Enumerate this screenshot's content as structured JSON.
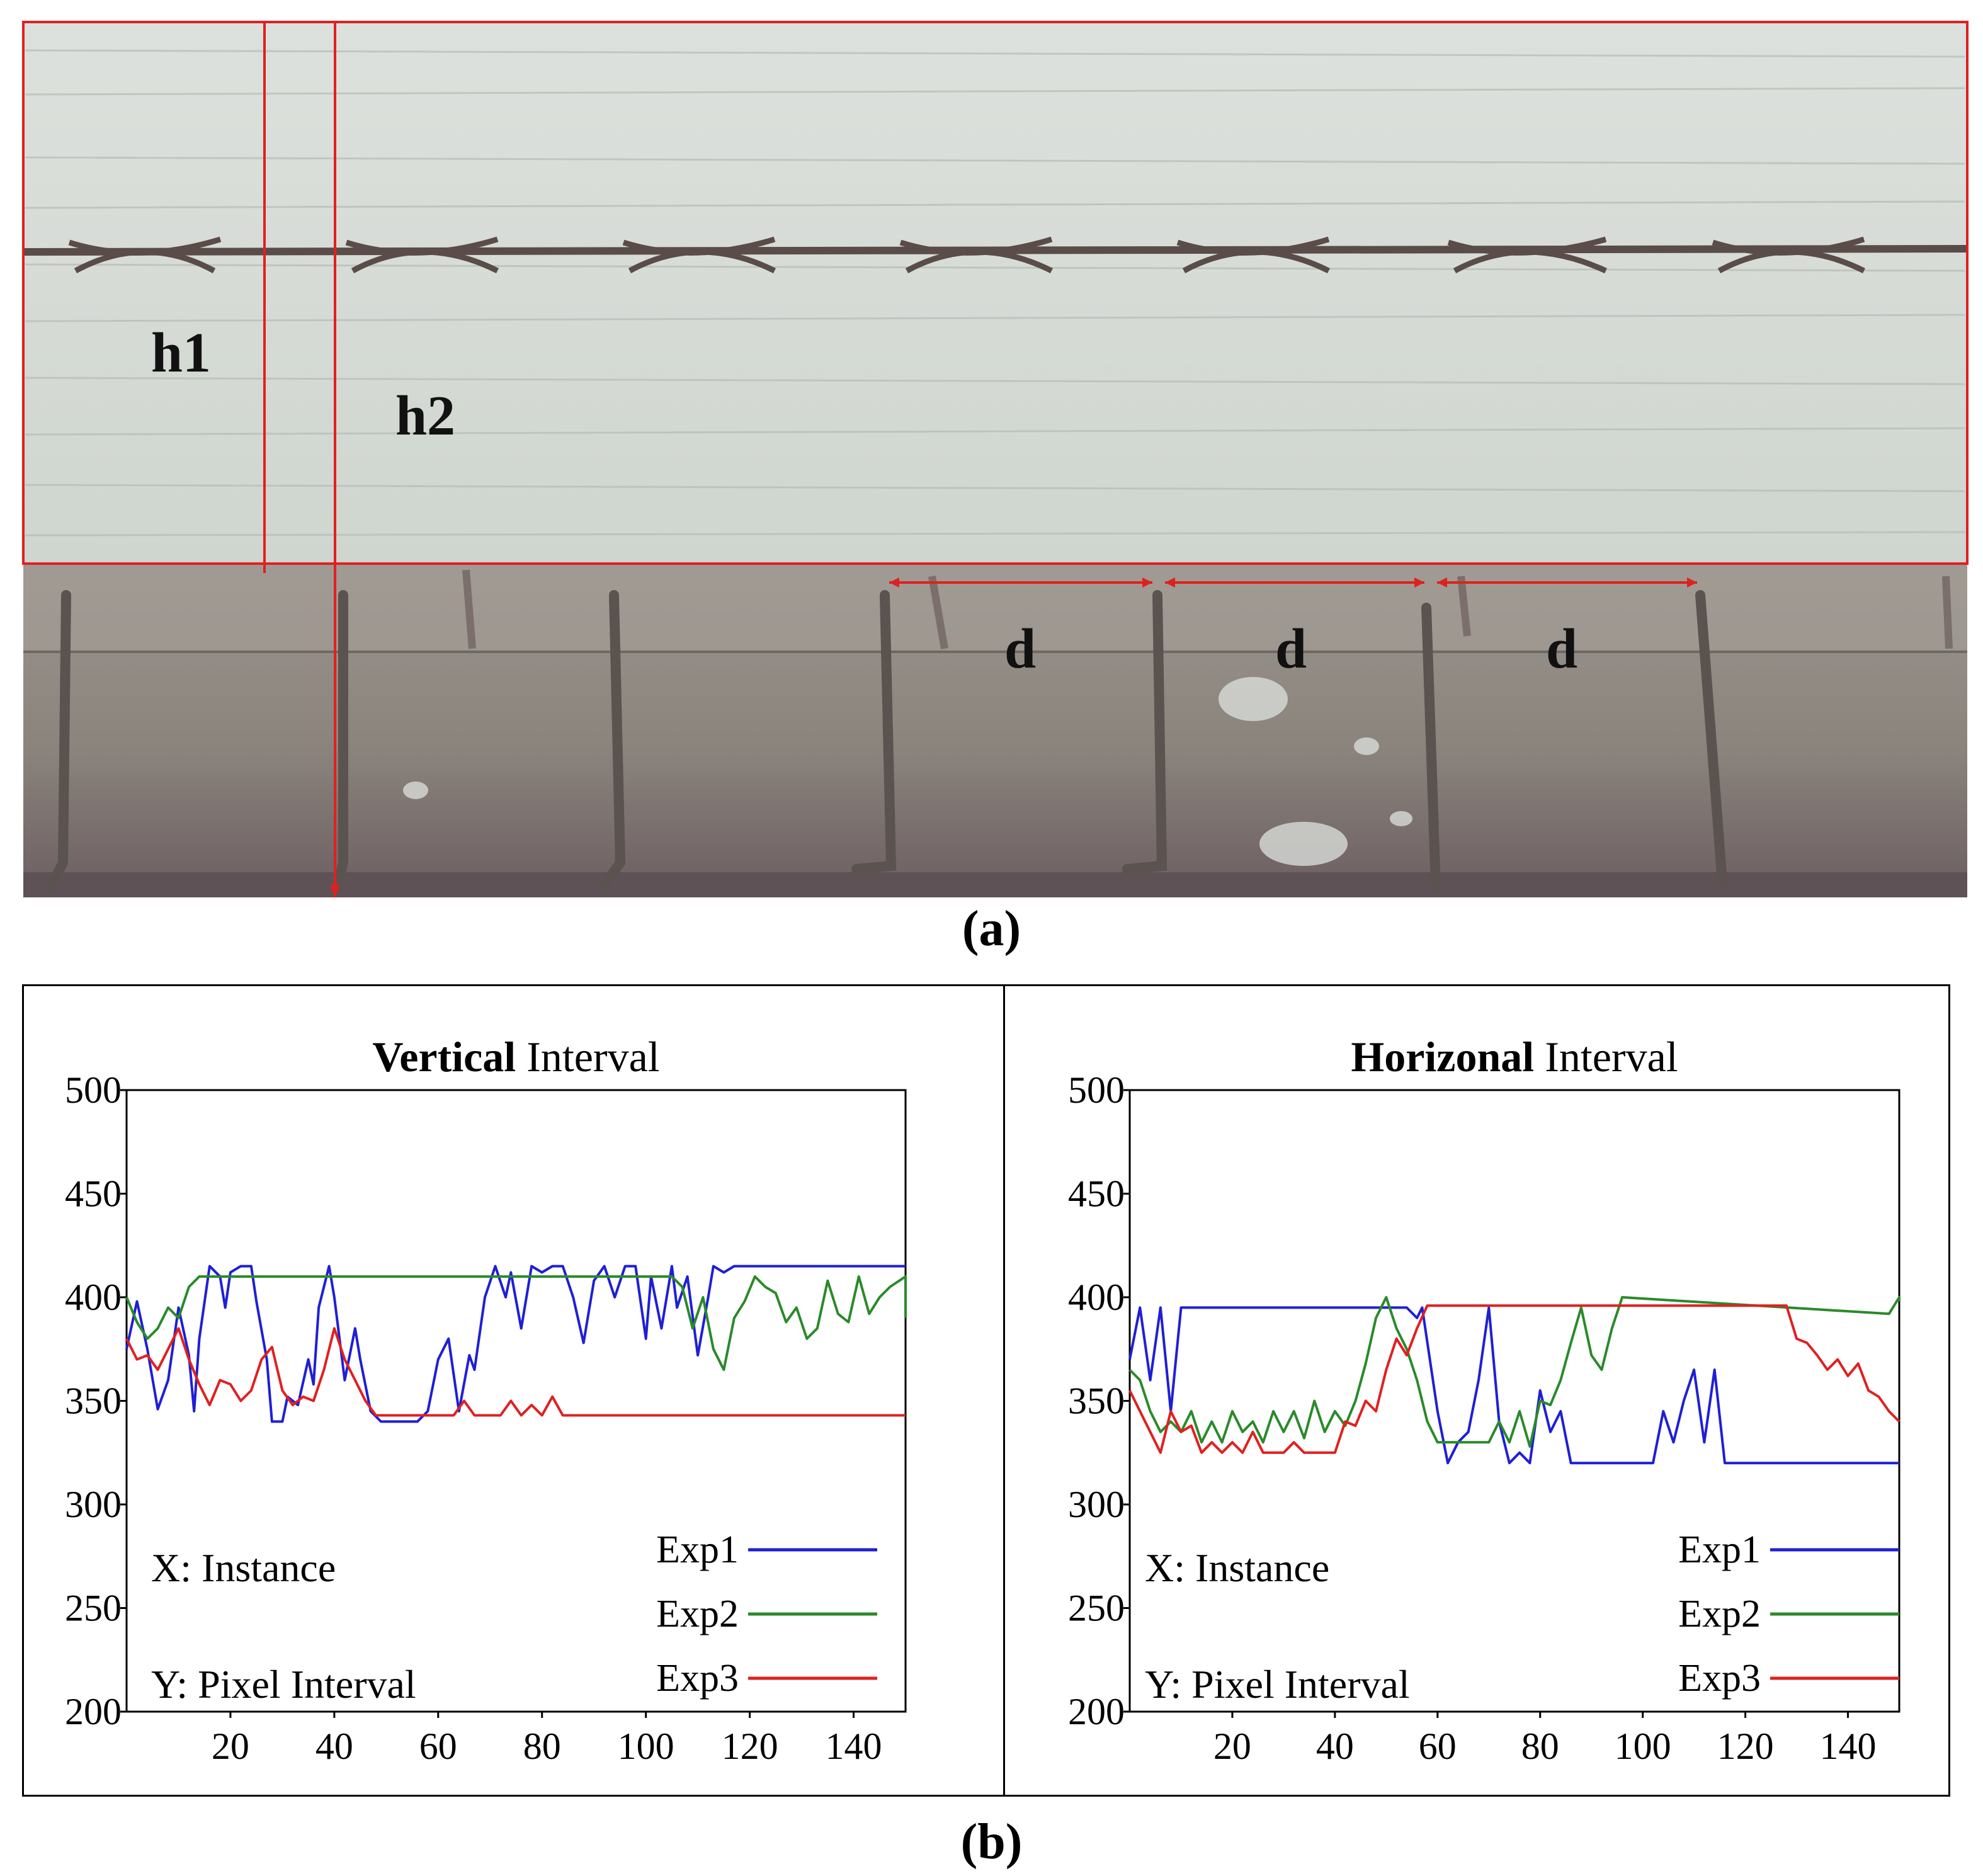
{
  "photo": {
    "labels": {
      "h1": "h1",
      "h2": "h2",
      "d": [
        "d",
        "d",
        "d"
      ]
    },
    "caption": "(a)",
    "colors": {
      "slab": "#d6dcd6",
      "beam": "#8a857f",
      "rebar": "#5a4c48",
      "annotation": "#e02020"
    }
  },
  "figure_caption": "(b)",
  "chart_data": [
    {
      "type": "line",
      "title_bold": "Vertical",
      "title_rest": " Interval",
      "xlim": [
        0,
        150
      ],
      "ylim": [
        200,
        500
      ],
      "xticks": [
        20,
        40,
        60,
        80,
        100,
        120,
        140
      ],
      "yticks": [
        200,
        250,
        300,
        350,
        400,
        450,
        500
      ],
      "annotations": {
        "x": "X:  Instance",
        "y": "Y:  Pixel Interval"
      },
      "legend_position": "bottom-right",
      "series": [
        {
          "name": "Exp1",
          "color": "#1f1fd6",
          "points": [
            [
              0,
              375
            ],
            [
              2,
              398
            ],
            [
              4,
              375
            ],
            [
              6,
              346
            ],
            [
              8,
              360
            ],
            [
              10,
              395
            ],
            [
              12,
              372
            ],
            [
              13,
              345
            ],
            [
              14,
              380
            ],
            [
              16,
              415
            ],
            [
              18,
              410
            ],
            [
              19,
              395
            ],
            [
              20,
              412
            ],
            [
              22,
              415
            ],
            [
              24,
              415
            ],
            [
              25,
              398
            ],
            [
              27,
              370
            ],
            [
              28,
              340
            ],
            [
              30,
              340
            ],
            [
              31,
              352
            ],
            [
              33,
              348
            ],
            [
              35,
              370
            ],
            [
              36,
              358
            ],
            [
              37,
              395
            ],
            [
              39,
              415
            ],
            [
              40,
              400
            ],
            [
              42,
              360
            ],
            [
              44,
              385
            ],
            [
              45,
              370
            ],
            [
              47,
              345
            ],
            [
              49,
              340
            ],
            [
              56,
              340
            ],
            [
              58,
              345
            ],
            [
              60,
              370
            ],
            [
              62,
              380
            ],
            [
              64,
              345
            ],
            [
              66,
              372
            ],
            [
              67,
              365
            ],
            [
              69,
              400
            ],
            [
              71,
              415
            ],
            [
              73,
              400
            ],
            [
              74,
              412
            ],
            [
              76,
              385
            ],
            [
              78,
              415
            ],
            [
              80,
              412
            ],
            [
              82,
              415
            ],
            [
              84,
              415
            ],
            [
              86,
              400
            ],
            [
              88,
              378
            ],
            [
              90,
              408
            ],
            [
              92,
              415
            ],
            [
              94,
              400
            ],
            [
              96,
              415
            ],
            [
              98,
              415
            ],
            [
              100,
              380
            ],
            [
              101,
              410
            ],
            [
              103,
              385
            ],
            [
              105,
              415
            ],
            [
              106,
              395
            ],
            [
              108,
              410
            ],
            [
              110,
              372
            ],
            [
              112,
              400
            ],
            [
              113,
              415
            ],
            [
              115,
              412
            ],
            [
              117,
              415
            ],
            [
              150,
              415
            ]
          ]
        },
        {
          "name": "Exp2",
          "color": "#2a8a2a",
          "points": [
            [
              0,
              400
            ],
            [
              2,
              388
            ],
            [
              4,
              380
            ],
            [
              6,
              385
            ],
            [
              8,
              395
            ],
            [
              10,
              390
            ],
            [
              12,
              405
            ],
            [
              14,
              410
            ],
            [
              150,
              410
            ],
            [
              105,
              410
            ],
            [
              107,
              405
            ],
            [
              109,
              385
            ],
            [
              111,
              400
            ],
            [
              113,
              375
            ],
            [
              115,
              365
            ],
            [
              117,
              390
            ],
            [
              119,
              398
            ],
            [
              121,
              410
            ],
            [
              123,
              405
            ],
            [
              125,
              402
            ],
            [
              127,
              388
            ],
            [
              129,
              395
            ],
            [
              131,
              380
            ],
            [
              133,
              385
            ],
            [
              135,
              408
            ],
            [
              137,
              392
            ],
            [
              139,
              388
            ],
            [
              141,
              410
            ],
            [
              143,
              392
            ],
            [
              145,
              400
            ],
            [
              147,
              405
            ],
            [
              150,
              390
            ]
          ]
        },
        {
          "name": "Exp3",
          "color": "#e02020",
          "points": [
            [
              0,
              380
            ],
            [
              2,
              370
            ],
            [
              4,
              372
            ],
            [
              6,
              365
            ],
            [
              8,
              375
            ],
            [
              10,
              385
            ],
            [
              12,
              370
            ],
            [
              14,
              358
            ],
            [
              16,
              348
            ],
            [
              18,
              360
            ],
            [
              20,
              358
            ],
            [
              22,
              350
            ],
            [
              24,
              355
            ],
            [
              26,
              370
            ],
            [
              28,
              376
            ],
            [
              30,
              355
            ],
            [
              32,
              348
            ],
            [
              34,
              352
            ],
            [
              36,
              350
            ],
            [
              38,
              365
            ],
            [
              40,
              385
            ],
            [
              42,
              370
            ],
            [
              44,
              360
            ],
            [
              46,
              350
            ],
            [
              48,
              343
            ],
            [
              63,
              343
            ],
            [
              65,
              350
            ],
            [
              67,
              343
            ],
            [
              72,
              343
            ],
            [
              74,
              350
            ],
            [
              76,
              343
            ],
            [
              78,
              348
            ],
            [
              80,
              343
            ],
            [
              82,
              352
            ],
            [
              84,
              343
            ],
            [
              150,
              343
            ]
          ]
        }
      ]
    },
    {
      "type": "line",
      "title_bold": "Horizonal",
      "title_rest": " Interval",
      "xlim": [
        0,
        150
      ],
      "ylim": [
        200,
        500
      ],
      "xticks": [
        20,
        40,
        60,
        80,
        100,
        120,
        140
      ],
      "yticks": [
        200,
        250,
        300,
        350,
        400,
        450,
        500
      ],
      "annotations": {
        "x": "X:  Instance",
        "y": "Y:  Pixel Interval"
      },
      "legend_position": "bottom-right",
      "series": [
        {
          "name": "Exp1",
          "color": "#1f1fd6",
          "points": [
            [
              0,
              370
            ],
            [
              2,
              395
            ],
            [
              4,
              360
            ],
            [
              6,
              395
            ],
            [
              8,
              345
            ],
            [
              10,
              395
            ],
            [
              12,
              395
            ],
            [
              54,
              395
            ],
            [
              56,
              390
            ],
            [
              57,
              395
            ],
            [
              60,
              345
            ],
            [
              62,
              320
            ],
            [
              64,
              330
            ],
            [
              66,
              335
            ],
            [
              68,
              360
            ],
            [
              70,
              395
            ],
            [
              72,
              340
            ],
            [
              74,
              320
            ],
            [
              76,
              325
            ],
            [
              78,
              320
            ],
            [
              80,
              355
            ],
            [
              82,
              335
            ],
            [
              84,
              345
            ],
            [
              86,
              320
            ],
            [
              102,
              320
            ],
            [
              104,
              345
            ],
            [
              106,
              330
            ],
            [
              108,
              350
            ],
            [
              110,
              365
            ],
            [
              112,
              330
            ],
            [
              114,
              365
            ],
            [
              116,
              320
            ],
            [
              150,
              320
            ]
          ]
        },
        {
          "name": "Exp2",
          "color": "#2a8a2a",
          "points": [
            [
              0,
              365
            ],
            [
              2,
              360
            ],
            [
              4,
              345
            ],
            [
              6,
              335
            ],
            [
              8,
              340
            ],
            [
              10,
              335
            ],
            [
              12,
              345
            ],
            [
              14,
              330
            ],
            [
              16,
              340
            ],
            [
              18,
              330
            ],
            [
              20,
              345
            ],
            [
              22,
              335
            ],
            [
              24,
              340
            ],
            [
              26,
              330
            ],
            [
              28,
              345
            ],
            [
              30,
              335
            ],
            [
              32,
              345
            ],
            [
              34,
              332
            ],
            [
              36,
              350
            ],
            [
              38,
              335
            ],
            [
              40,
              345
            ],
            [
              42,
              338
            ],
            [
              44,
              350
            ],
            [
              46,
              368
            ],
            [
              48,
              390
            ],
            [
              50,
              400
            ],
            [
              52,
              385
            ],
            [
              54,
              375
            ],
            [
              56,
              360
            ],
            [
              58,
              340
            ],
            [
              60,
              330
            ],
            [
              70,
              330
            ],
            [
              72,
              340
            ],
            [
              74,
              330
            ],
            [
              76,
              345
            ],
            [
              78,
              328
            ],
            [
              80,
              350
            ],
            [
              82,
              348
            ],
            [
              84,
              360
            ],
            [
              86,
              378
            ],
            [
              88,
              395
            ],
            [
              90,
              372
            ],
            [
              92,
              365
            ],
            [
              94,
              385
            ],
            [
              96,
              400
            ],
            [
              150,
              400
            ],
            [
              148,
              392
            ],
            [
              150,
              398
            ]
          ]
        },
        {
          "name": "Exp3",
          "color": "#e02020",
          "points": [
            [
              0,
              355
            ],
            [
              2,
              345
            ],
            [
              4,
              335
            ],
            [
              6,
              325
            ],
            [
              8,
              345
            ],
            [
              10,
              335
            ],
            [
              12,
              338
            ],
            [
              14,
              325
            ],
            [
              16,
              330
            ],
            [
              18,
              325
            ],
            [
              20,
              330
            ],
            [
              22,
              325
            ],
            [
              24,
              335
            ],
            [
              26,
              325
            ],
            [
              30,
              325
            ],
            [
              32,
              330
            ],
            [
              34,
              325
            ],
            [
              40,
              325
            ],
            [
              42,
              340
            ],
            [
              44,
              338
            ],
            [
              46,
              350
            ],
            [
              48,
              345
            ],
            [
              50,
              365
            ],
            [
              52,
              380
            ],
            [
              54,
              372
            ],
            [
              56,
              385
            ],
            [
              58,
              396
            ],
            [
              128,
              396
            ],
            [
              130,
              380
            ],
            [
              132,
              378
            ],
            [
              134,
              372
            ],
            [
              136,
              365
            ],
            [
              138,
              370
            ],
            [
              140,
              362
            ],
            [
              142,
              368
            ],
            [
              144,
              355
            ],
            [
              146,
              352
            ],
            [
              148,
              345
            ],
            [
              150,
              340
            ]
          ]
        }
      ]
    }
  ]
}
